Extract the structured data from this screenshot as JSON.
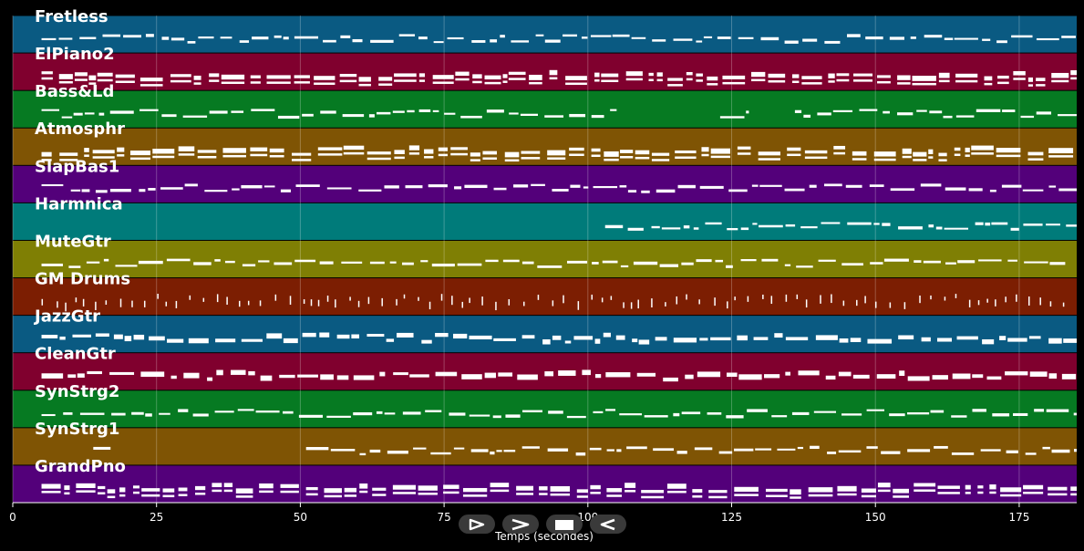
{
  "chart_data": {
    "type": "piano-roll",
    "xlabel": "Temps (secondes)",
    "xlim": [
      0,
      185
    ],
    "xticks": [
      0,
      25,
      50,
      75,
      100,
      125,
      150,
      175
    ],
    "grid": true,
    "tracks": [
      {
        "name": "Fretless",
        "color": "#0a5a82"
      },
      {
        "name": "ElPiano2",
        "color": "#80002e"
      },
      {
        "name": "Bass&Ld",
        "color": "#067a22"
      },
      {
        "name": "Atmosphr",
        "color": "#7f5404"
      },
      {
        "name": "SlapBas1",
        "color": "#53007a"
      },
      {
        "name": "Harmnica",
        "color": "#007b7a"
      },
      {
        "name": "MuteGtr",
        "color": "#7f7f04"
      },
      {
        "name": "GM Drums",
        "color": "#7c1e02"
      },
      {
        "name": "JazzGtr",
        "color": "#0a5a82"
      },
      {
        "name": "CleanGtr",
        "color": "#80002e"
      },
      {
        "name": "SynStrg2",
        "color": "#067a22"
      },
      {
        "name": "SynStrg1",
        "color": "#7f5404"
      },
      {
        "name": "GrandPno",
        "color": "#53007a"
      }
    ]
  },
  "controls": {
    "play_icon": "play-icon",
    "next_icon": "next-icon",
    "stop_icon": "stop-icon",
    "back_icon": "back-icon"
  }
}
